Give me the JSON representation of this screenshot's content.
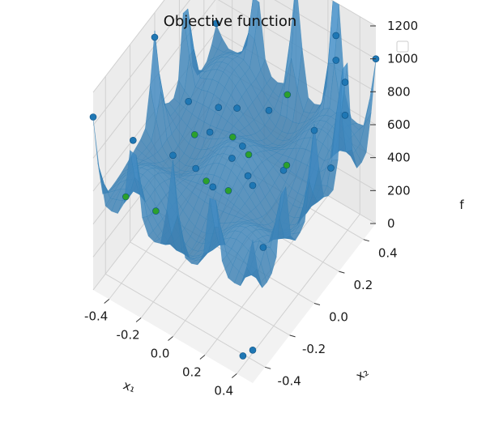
{
  "chart_data": {
    "type": "surface3d",
    "title": "Objective function",
    "xlabel": "x₁",
    "ylabel": "x₂",
    "zlabel": "f",
    "xlim": [
      -0.5,
      0.5
    ],
    "ylim": [
      -0.5,
      0.5
    ],
    "zlim": [
      0,
      1200
    ],
    "x_ticks": [
      "-0.4",
      "-0.2",
      "0.0",
      "0.2",
      "0.4"
    ],
    "y_ticks": [
      "-0.4",
      "-0.2",
      "0.0",
      "0.2",
      "0.4"
    ],
    "z_ticks": [
      "0",
      "200",
      "400",
      "600",
      "800",
      "1000",
      "1200"
    ],
    "grid": true,
    "legend": {
      "placement": "top-right",
      "entries": []
    },
    "colors": {
      "surface": "#5aa7d8",
      "surface_edge": "#2f7fb5",
      "points_blue": "#1f77b4",
      "points_green": "#2ca02c",
      "pane": "#f2f2f2",
      "grid": "#d0d0d0"
    },
    "series": [
      {
        "marker_color": "blue",
        "points": [
          {
            "x1": -0.5,
            "x2": 0.5,
            "f": 650
          },
          {
            "x1": -0.5,
            "x2": 0.25,
            "f": 1100
          },
          {
            "x1": -0.25,
            "x2": 0.5,
            "f": 1000
          },
          {
            "x1": 0.0,
            "x2": 0.5,
            "f": 1230
          },
          {
            "x1": 0.25,
            "x2": 0.5,
            "f": 1000
          },
          {
            "x1": 0.5,
            "x2": 0.5,
            "f": 1000
          },
          {
            "x1": 0.5,
            "x2": 0.25,
            "f": 1100
          },
          {
            "x1": 0.5,
            "x2": 0.0,
            "f": 1050
          },
          {
            "x1": 0.5,
            "x2": -0.25,
            "f": 1050
          },
          {
            "x1": 0.5,
            "x2": -0.5,
            "f": 1200
          },
          {
            "x1": 0.25,
            "x2": -0.5,
            "f": 1050
          },
          {
            "x1": 0.0,
            "x2": -0.5,
            "f": 1100
          },
          {
            "x1": -0.25,
            "x2": -0.5,
            "f": 1050
          },
          {
            "x1": -0.5,
            "x2": -0.5,
            "f": 1050
          },
          {
            "x1": -0.5,
            "x2": 0.0,
            "f": 1050
          },
          {
            "x1": 0.25,
            "x2": 0.5,
            "f": 850
          },
          {
            "x1": 0.5,
            "x2": 0.25,
            "f": 900
          },
          {
            "x1": 0.45,
            "x2": -0.35,
            "f": 650
          },
          {
            "x1": 0.45,
            "x2": 0.2,
            "f": 600
          },
          {
            "x1": 0.5,
            "x2": -0.5,
            "f": 200
          },
          {
            "x1": 0.4,
            "x2": -0.45,
            "f": 60
          },
          {
            "x1": 0.0,
            "x2": -0.2,
            "f": 950
          },
          {
            "x1": -0.1,
            "x2": 0.15,
            "f": 700
          },
          {
            "x1": 0.2,
            "x2": -0.15,
            "f": 750
          },
          {
            "x1": -0.05,
            "x2": -0.25,
            "f": 750
          },
          {
            "x1": 0.1,
            "x2": 0.15,
            "f": 800
          },
          {
            "x1": 0.1,
            "x2": -0.15,
            "f": 800
          },
          {
            "x1": -0.1,
            "x2": 0.0,
            "f": 850
          },
          {
            "x1": -0.25,
            "x2": -0.05,
            "f": 850
          },
          {
            "x1": 0.05,
            "x2": 0.0,
            "f": 700
          }
        ]
      },
      {
        "marker_color": "green",
        "points": [
          {
            "x1": -0.45,
            "x2": -0.3,
            "f": 400
          },
          {
            "x1": -0.3,
            "x2": -0.25,
            "f": 350
          },
          {
            "x1": -0.25,
            "x2": 0.0,
            "f": 600
          },
          {
            "x1": -0.1,
            "x2": -0.1,
            "f": 500
          },
          {
            "x1": 0.0,
            "x2": -0.05,
            "f": 450
          },
          {
            "x1": 0.05,
            "x2": 0.05,
            "f": 600
          },
          {
            "x1": 0.1,
            "x2": 0.3,
            "f": 750
          },
          {
            "x1": 0.25,
            "x2": 0.1,
            "f": 600
          },
          {
            "x1": -0.05,
            "x2": 0.05,
            "f": 650
          }
        ]
      }
    ]
  }
}
